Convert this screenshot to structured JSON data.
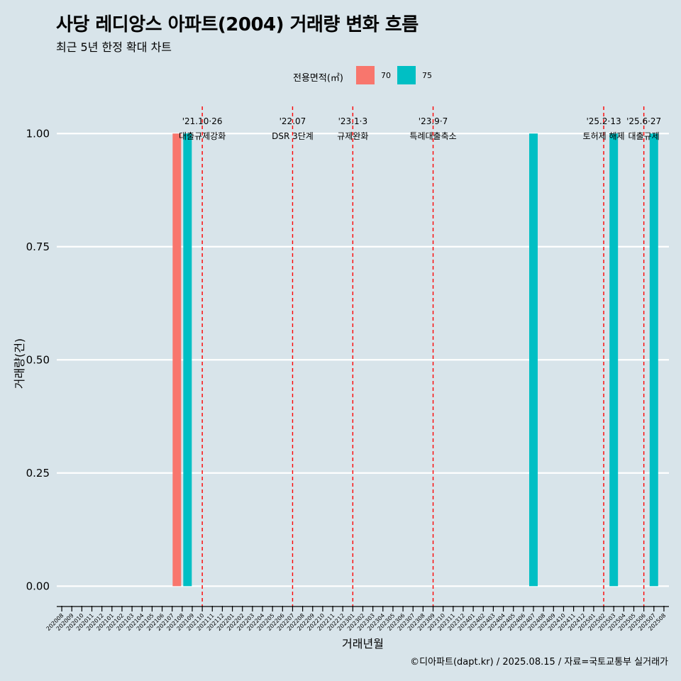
{
  "header": {
    "title": "사당 레디앙스 아파트(2004) 거래량 변화 흐름",
    "subtitle": "최근 5년 한정 확대 차트"
  },
  "legend": {
    "title": "전용면적(㎡)",
    "items": [
      {
        "label": "70",
        "color": "#f8766d"
      },
      {
        "label": "75",
        "color": "#00bfc4"
      }
    ]
  },
  "caption": "©디아파트(dapt.kr) / 2025.08.15 / 자료=국토교통부 실거래가",
  "chart_data": {
    "type": "bar",
    "xlabel": "거래년월",
    "ylabel": "거래량(건)",
    "ylim": [
      -0.045,
      1.06
    ],
    "yticks": [
      "0.00",
      "0.25",
      "0.50",
      "0.75",
      "1.00"
    ],
    "grid": true,
    "legend_position": "top",
    "categories": [
      "202008",
      "202009",
      "202010",
      "202011",
      "202012",
      "202101",
      "202102",
      "202103",
      "202104",
      "202105",
      "202106",
      "202107",
      "202108",
      "202109",
      "202110",
      "202111",
      "202112",
      "202201",
      "202202",
      "202203",
      "202204",
      "202205",
      "202206",
      "202207",
      "202208",
      "202209",
      "202210",
      "202211",
      "202212",
      "202301",
      "202302",
      "202303",
      "202304",
      "202305",
      "202306",
      "202307",
      "202308",
      "202309",
      "202310",
      "202311",
      "202312",
      "202401",
      "202402",
      "202403",
      "202404",
      "202405",
      "202406",
      "202407",
      "202408",
      "202409",
      "202410",
      "202411",
      "202412",
      "202501",
      "202502",
      "202503",
      "202504",
      "202505",
      "202506",
      "202507",
      "202508"
    ],
    "series": [
      {
        "name": "70",
        "color": "#f8766d",
        "points": [
          {
            "x": "202108",
            "y": 1
          }
        ]
      },
      {
        "name": "75",
        "color": "#00bfc4",
        "points": [
          {
            "x": "202108",
            "y": 1
          },
          {
            "x": "202407",
            "y": 1
          },
          {
            "x": "202503",
            "y": 1
          },
          {
            "x": "202507",
            "y": 1
          }
        ]
      }
    ],
    "annotations": [
      {
        "x": "202110",
        "date": "'21.10·26",
        "label": "대출규제강화"
      },
      {
        "x": "202207",
        "date": "'22.07",
        "label": "DSR 3단계"
      },
      {
        "x": "202301",
        "date": "'23.1·3",
        "label": "규제완화"
      },
      {
        "x": "202309",
        "date": "'23.9·7",
        "label": "특례대출축소"
      },
      {
        "x": "202502",
        "date": "'25.2·13",
        "label": "토허제 해제"
      },
      {
        "x": "202506",
        "date": "'25.6·27",
        "label": "대출규제"
      }
    ]
  }
}
